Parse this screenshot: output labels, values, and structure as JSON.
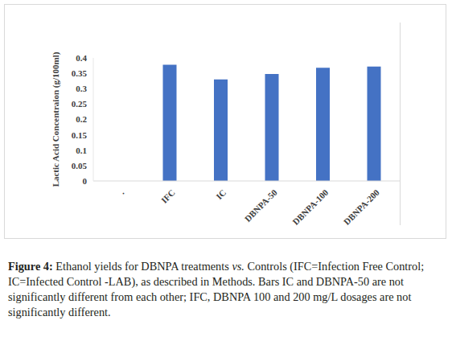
{
  "chart_data": {
    "type": "bar",
    "categories": [
      ".",
      "IFC",
      "IC",
      "DBNPA-50",
      "DBNPA-100",
      "DBNPA-200"
    ],
    "values": [
      null,
      0.378,
      0.33,
      0.348,
      0.368,
      0.372
    ],
    "color": "#4472c4",
    "ylim": [
      0,
      0.4
    ],
    "yticks": [
      0,
      0.05,
      0.1,
      0.15,
      0.2,
      0.25,
      0.3,
      0.35,
      0.4
    ],
    "grid": false,
    "y_label": "Lactic Acid Concentraion (g/100ml)",
    "caption": [
      "Figure 4:",
      " Ethanol yields for DBNPA treatments ",
      "vs.",
      " Controls (IFC=Infection Free Control; IC=Infected Control -LAB), as described in Methods. Bars IC and DBNPA-50 are not significantly different from each other; IFC, DBNPA 100 and 200 mg/L dosages are not significantly different."
    ]
  }
}
